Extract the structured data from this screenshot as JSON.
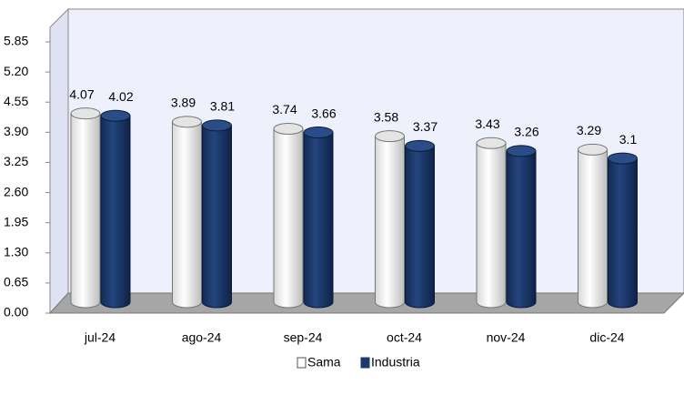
{
  "chart_data": {
    "type": "bar3d",
    "categories": [
      "jul-24",
      "ago-24",
      "sep-24",
      "oct-24",
      "nov-24",
      "dic-24"
    ],
    "series": [
      {
        "name": "Sama",
        "color": "#ffffff",
        "values": [
          4.07,
          3.89,
          3.74,
          3.58,
          3.43,
          3.29
        ]
      },
      {
        "name": "Industria",
        "color": "#1c3a6e",
        "values": [
          4.02,
          3.81,
          3.66,
          3.37,
          3.26,
          3.1
        ]
      }
    ],
    "ylim": [
      0,
      5.85
    ],
    "yticks": [
      {
        "value": 0,
        "label": "0.00"
      },
      0.65,
      {
        "value": 1.3,
        "label": "1.30"
      },
      1.95,
      {
        "value": 2.6,
        "label": "2.60"
      },
      3.25,
      {
        "value": 3.9,
        "label": "3.90"
      },
      4.55,
      {
        "value": 5.2,
        "label": "5.20"
      },
      5.85
    ],
    "legend": "bottom"
  }
}
